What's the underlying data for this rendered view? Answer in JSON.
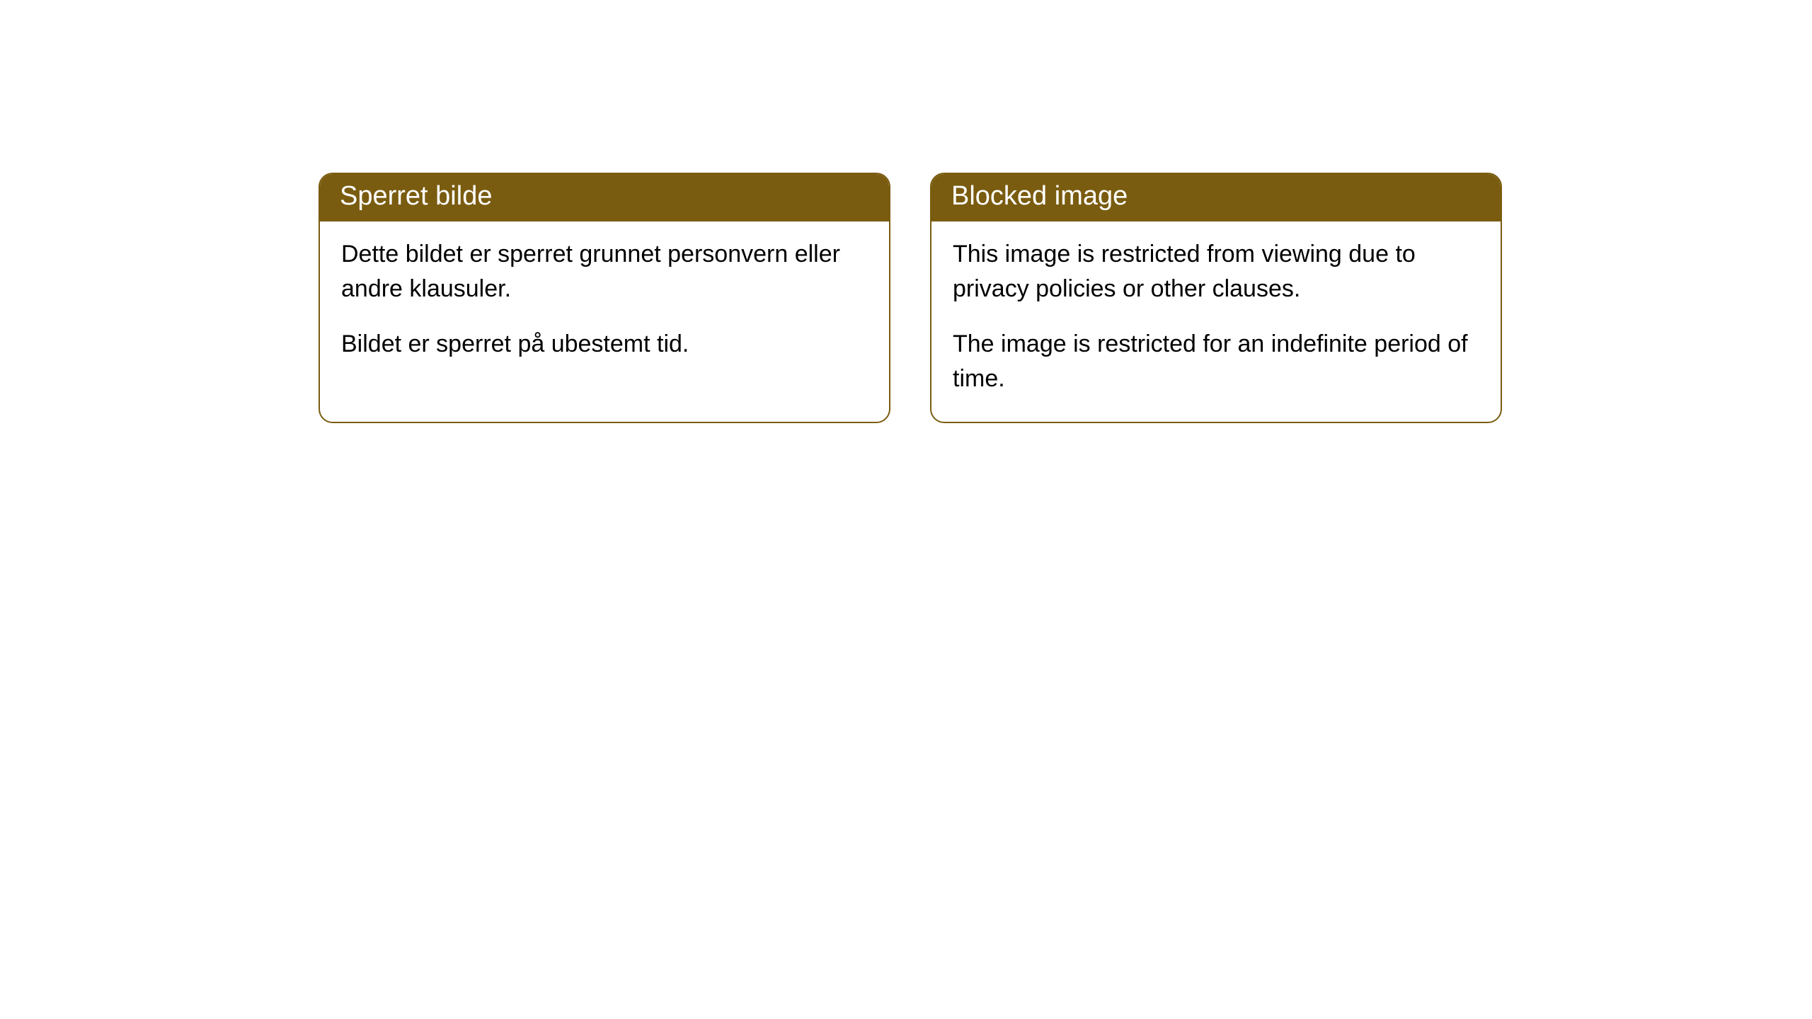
{
  "cards": [
    {
      "title": "Sperret bilde",
      "paragraph1": "Dette bildet er sperret grunnet personvern eller andre klausuler.",
      "paragraph2": "Bildet er sperret på ubestemt tid."
    },
    {
      "title": "Blocked image",
      "paragraph1": "This image is restricted from viewing due to privacy policies or other clauses.",
      "paragraph2": "The image is restricted for an indefinite period of time."
    }
  ],
  "style": {
    "header_background": "#7a5c10",
    "header_text_color": "#ffffff",
    "border_color": "#7a5c10",
    "body_background": "#ffffff",
    "body_text_color": "#000000",
    "border_radius": 20,
    "title_fontsize": 38,
    "body_fontsize": 34
  }
}
